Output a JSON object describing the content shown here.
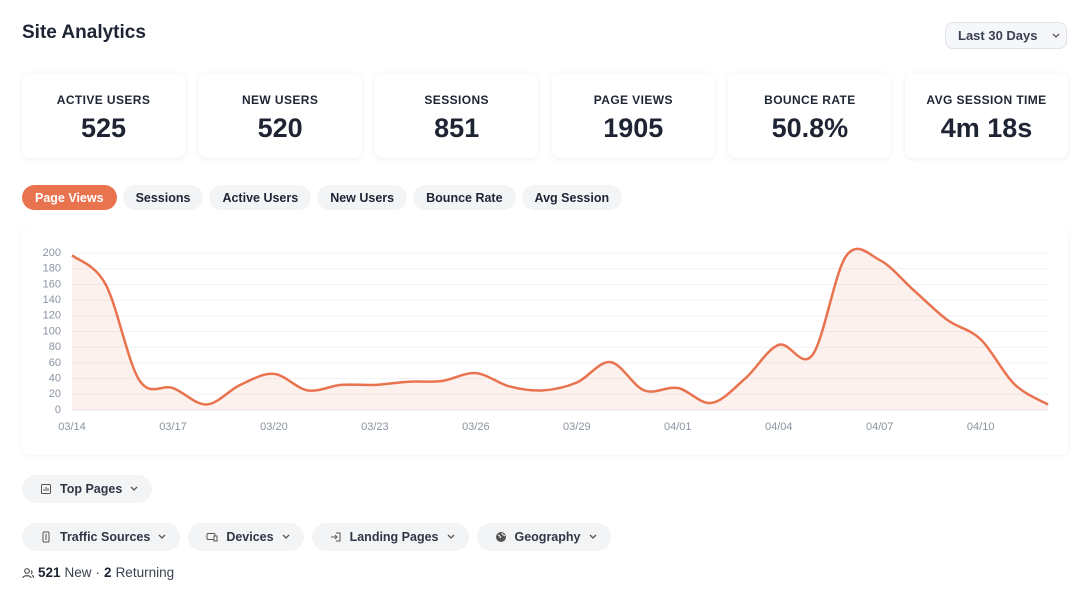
{
  "header": {
    "title": "Site Analytics",
    "range": "Last 30 Days"
  },
  "kpis": [
    {
      "label": "ACTIVE USERS",
      "value": 525
    },
    {
      "label": "NEW USERS",
      "value": 520
    },
    {
      "label": "SESSIONS",
      "value": 851
    },
    {
      "label": "PAGE VIEWS",
      "value": 1905
    },
    {
      "label": "BOUNCE RATE",
      "value": "50.8%"
    },
    {
      "label": "AVG SESSION TIME",
      "value": "4m 18s"
    }
  ],
  "tabs": [
    "Page Views",
    "Sessions",
    "Active Users",
    "New Users",
    "Bounce Rate",
    "Avg Session"
  ],
  "chart_data": {
    "type": "area",
    "categories": [
      "03/14",
      null,
      null,
      "03/17",
      null,
      null,
      "03/20",
      null,
      null,
      "03/23",
      null,
      null,
      "03/26",
      null,
      null,
      "03/29",
      null,
      null,
      "04/01",
      null,
      null,
      "04/04",
      null,
      null,
      "04/07",
      null,
      null,
      "04/10",
      null,
      null
    ],
    "values": [
      197,
      160,
      38,
      28,
      7,
      32,
      46,
      25,
      32,
      32,
      36,
      37,
      47,
      30,
      25,
      35,
      61,
      25,
      28,
      9,
      40,
      83,
      70,
      196,
      191,
      153,
      115,
      90,
      33,
      7
    ],
    "color": "#e8734e",
    "ylim": [
      0,
      200
    ],
    "yticks": [
      0,
      20,
      40,
      60,
      80,
      100,
      120,
      140,
      160,
      180,
      200
    ],
    "grid": true
  },
  "sections": {
    "row1": [
      "Top Pages"
    ],
    "row2": [
      "Traffic Sources",
      "Devices",
      "Landing Pages",
      "Geography"
    ]
  },
  "footer": {
    "new_count": 521,
    "new_label": "New",
    "separator": "·",
    "returning_count": 2,
    "returning_label": "Returning"
  }
}
